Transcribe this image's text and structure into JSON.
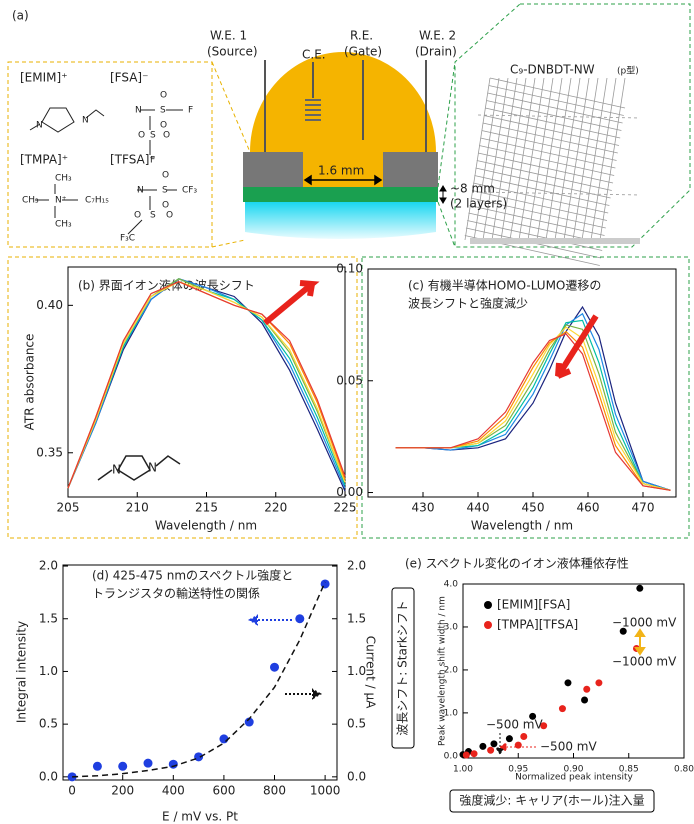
{
  "diagram": {
    "panel_label": "(a)",
    "electrodes": [
      {
        "label": "W.E. 1",
        "role": "(Source)"
      },
      {
        "label": "C.E."
      },
      {
        "label": "R.E.",
        "role": "(Gate)"
      },
      {
        "label": "W.E. 2",
        "role": "(Drain)"
      }
    ],
    "channel_length": "1.6 mm",
    "thickness": [
      "~8 mm",
      "(2 layers)"
    ],
    "material": {
      "name": "C₉-DNBDT-NW",
      "note": "(p型)"
    },
    "ions": [
      {
        "label": "[EMIM]⁺",
        "color": "#222222",
        "atoms": [
          "N",
          "N"
        ]
      },
      {
        "label": "[FSA]⁻",
        "color": "#222222",
        "atoms": [
          "N",
          "S",
          "F",
          "S",
          "F",
          "O",
          "O",
          "O",
          "O"
        ]
      },
      {
        "label": "[TMPA]⁺",
        "color": "#e8312a",
        "atoms": [
          "CH₃",
          "CH₃",
          "N⁺",
          "C₇H₁₅",
          "CH₃"
        ]
      },
      {
        "label": "[TFSA]⁻",
        "color": "#e8312a",
        "atoms": [
          "N",
          "S",
          "CF₃",
          "S",
          "F₃C",
          "O",
          "O",
          "O",
          "O"
        ]
      }
    ]
  },
  "chart_data": [
    {
      "type": "line",
      "title": [
        "(b) 界面イオン液体の波長シフト"
      ],
      "x_label": "Wavelength / nm",
      "y_label": "ATR absorbance",
      "inset_atoms": [
        "N",
        "N"
      ],
      "x": [
        205,
        207,
        209,
        211,
        213,
        215,
        217,
        219,
        221,
        223,
        225
      ],
      "series": [
        {
          "color": "#1a237e",
          "values": [
            0.338,
            0.36,
            0.385,
            0.402,
            0.409,
            0.406,
            0.403,
            0.394,
            0.378,
            0.358,
            0.337
          ]
        },
        {
          "color": "#1e88e5",
          "values": [
            0.338,
            0.36,
            0.386,
            0.402,
            0.409,
            0.406,
            0.402,
            0.395,
            0.38,
            0.36,
            0.338
          ]
        },
        {
          "color": "#00bfa5",
          "values": [
            0.338,
            0.361,
            0.386,
            0.403,
            0.409,
            0.405,
            0.402,
            0.395,
            0.382,
            0.362,
            0.339
          ]
        },
        {
          "color": "#7cb342",
          "values": [
            0.338,
            0.361,
            0.387,
            0.403,
            0.409,
            0.405,
            0.401,
            0.396,
            0.384,
            0.364,
            0.34
          ]
        },
        {
          "color": "#fdd835",
          "values": [
            0.338,
            0.361,
            0.387,
            0.403,
            0.408,
            0.405,
            0.401,
            0.396,
            0.385,
            0.365,
            0.34
          ]
        },
        {
          "color": "#fb8c00",
          "values": [
            0.338,
            0.362,
            0.388,
            0.404,
            0.408,
            0.404,
            0.4,
            0.397,
            0.387,
            0.367,
            0.341
          ]
        },
        {
          "color": "#e53935",
          "values": [
            0.338,
            0.362,
            0.388,
            0.404,
            0.408,
            0.404,
            0.4,
            0.397,
            0.388,
            0.368,
            0.342
          ]
        }
      ],
      "xlim": [
        205,
        225
      ],
      "ylim": [
        0.335,
        0.413
      ],
      "xticks": [
        205,
        210,
        215,
        220,
        225
      ],
      "yticks": [
        0.35,
        {
          "value": 0.4,
          "label": "0.40"
        }
      ]
    },
    {
      "type": "line",
      "title": [
        "(c) 有機半導体HOMO-LUMO遷移の",
        "波長シフトと強度減少"
      ],
      "x_label": "Wavelength / nm",
      "x": [
        425,
        430,
        435,
        440,
        445,
        450,
        453,
        456,
        459,
        462,
        465,
        470,
        475
      ],
      "series": [
        {
          "color": "#1a237e",
          "values": [
            0.02,
            0.02,
            0.019,
            0.02,
            0.024,
            0.04,
            0.055,
            0.072,
            0.083,
            0.07,
            0.04,
            0.005,
            0.001
          ]
        },
        {
          "color": "#1e88e5",
          "values": [
            0.02,
            0.02,
            0.019,
            0.021,
            0.026,
            0.044,
            0.059,
            0.075,
            0.08,
            0.064,
            0.035,
            0.005,
            0.001
          ]
        },
        {
          "color": "#00bfa5",
          "values": [
            0.02,
            0.02,
            0.02,
            0.021,
            0.028,
            0.047,
            0.062,
            0.076,
            0.077,
            0.058,
            0.031,
            0.004,
            0.001
          ]
        },
        {
          "color": "#7cb342",
          "values": [
            0.02,
            0.02,
            0.02,
            0.022,
            0.03,
            0.05,
            0.064,
            0.075,
            0.073,
            0.053,
            0.027,
            0.004,
            0.001
          ]
        },
        {
          "color": "#fdd835",
          "values": [
            0.02,
            0.02,
            0.02,
            0.022,
            0.032,
            0.053,
            0.066,
            0.074,
            0.069,
            0.048,
            0.024,
            0.004,
            0.001
          ]
        },
        {
          "color": "#fb8c00",
          "values": [
            0.02,
            0.02,
            0.02,
            0.023,
            0.034,
            0.056,
            0.067,
            0.072,
            0.065,
            0.044,
            0.021,
            0.003,
            0.001
          ]
        },
        {
          "color": "#e53935",
          "values": [
            0.02,
            0.02,
            0.02,
            0.024,
            0.036,
            0.058,
            0.068,
            0.071,
            0.062,
            0.04,
            0.018,
            0.003,
            0.001
          ]
        }
      ],
      "xlim": [
        420,
        476
      ],
      "ylim": [
        -0.002,
        0.1
      ],
      "xticks": [
        430,
        440,
        450,
        460,
        470
      ],
      "yticks": [
        {
          "value": 0.0,
          "label": "0.00"
        },
        0.05,
        {
          "value": 0.1,
          "label": "0.10"
        }
      ]
    },
    {
      "type": "scatter",
      "title": [
        "(d) 425-475 nmのスペクトル強度と",
        "トランジスタの輸送特性の関係"
      ],
      "x_label": "E / mV vs. Pt",
      "y_label": "Integral intensity",
      "y2_label": "Current / μA",
      "x": [
        0,
        100,
        200,
        300,
        400,
        500,
        600,
        700,
        800,
        900,
        1000
      ],
      "series": [
        {
          "color": "#1f3fe0",
          "values": [
            0.0,
            0.1,
            0.1,
            0.13,
            0.12,
            0.19,
            0.36,
            0.52,
            1.04,
            1.5,
            1.83
          ]
        },
        {
          "color": "#111111",
          "dashed": true,
          "axis": "y2",
          "values": [
            0.0,
            0.01,
            0.03,
            0.06,
            0.1,
            0.18,
            0.32,
            0.55,
            0.85,
            1.3,
            1.85
          ]
        }
      ],
      "xlim": [
        -36,
        1047
      ],
      "ylim": [
        -0.03,
        2.01
      ],
      "y2lim": [
        -0.03,
        2.01
      ],
      "xticks": [
        0,
        200,
        400,
        600,
        800,
        1000
      ],
      "yticks": [
        {
          "value": 0.0,
          "label": "0.0"
        },
        0.5,
        {
          "value": 1.0,
          "label": "1.0"
        },
        1.5,
        {
          "value": 2.0,
          "label": "2.0"
        }
      ],
      "y2ticks": [
        {
          "value": 0.0,
          "label": "0.0"
        },
        0.5,
        {
          "value": 1.0,
          "label": "1.0"
        },
        1.5,
        {
          "value": 2.0,
          "label": "2.0"
        }
      ]
    },
    {
      "type": "scatter",
      "title": [
        "(e) スペクトル変化のイオン液体種依存性"
      ],
      "x_label": "Normalized peak intensity",
      "y_label": "Peak wavelength shift width / nm",
      "side_label": "波長シフト: Starkシフト",
      "bottom_label": "強度減少: キャリア(ホール)注入量",
      "annotations": [
        "−1000 mV",
        "−1000 mV",
        "−500 mV",
        "−500 mV"
      ],
      "legend": "upper-left",
      "series": [
        {
          "name": "[EMIM][FSA]",
          "color": "#000000",
          "x": [
            1.0,
            0.995,
            0.982,
            0.972,
            0.958,
            0.937,
            0.905,
            0.89,
            0.855,
            0.84
          ],
          "values": [
            0.03,
            0.1,
            0.22,
            0.28,
            0.4,
            0.92,
            1.7,
            1.3,
            2.9,
            3.9
          ]
        },
        {
          "name": "[TMPA][TFSA]",
          "color": "#e8231c",
          "x": [
            0.997,
            0.99,
            0.975,
            0.95,
            0.945,
            0.927,
            0.91,
            0.888,
            0.877,
            0.843
          ],
          "values": [
            0.02,
            0.05,
            0.13,
            0.25,
            0.45,
            0.7,
            1.1,
            1.55,
            1.7,
            2.5
          ]
        }
      ],
      "xlim": [
        1.0,
        0.8
      ],
      "ylim": [
        -0.05,
        4.0
      ],
      "xticks": [
        {
          "value": 1.0,
          "label": "1.00"
        },
        0.95,
        {
          "value": 0.9,
          "label": "0.90"
        },
        0.85,
        {
          "value": 0.8,
          "label": "0.80"
        }
      ],
      "yticks": [
        {
          "value": 0.0,
          "label": "0.0"
        },
        {
          "value": 1.0,
          "label": "1.0"
        },
        {
          "value": 2.0,
          "label": "2.0"
        },
        {
          "value": 3.0,
          "label": "3.0"
        },
        {
          "value": 4.0,
          "label": "4.0"
        }
      ]
    }
  ]
}
